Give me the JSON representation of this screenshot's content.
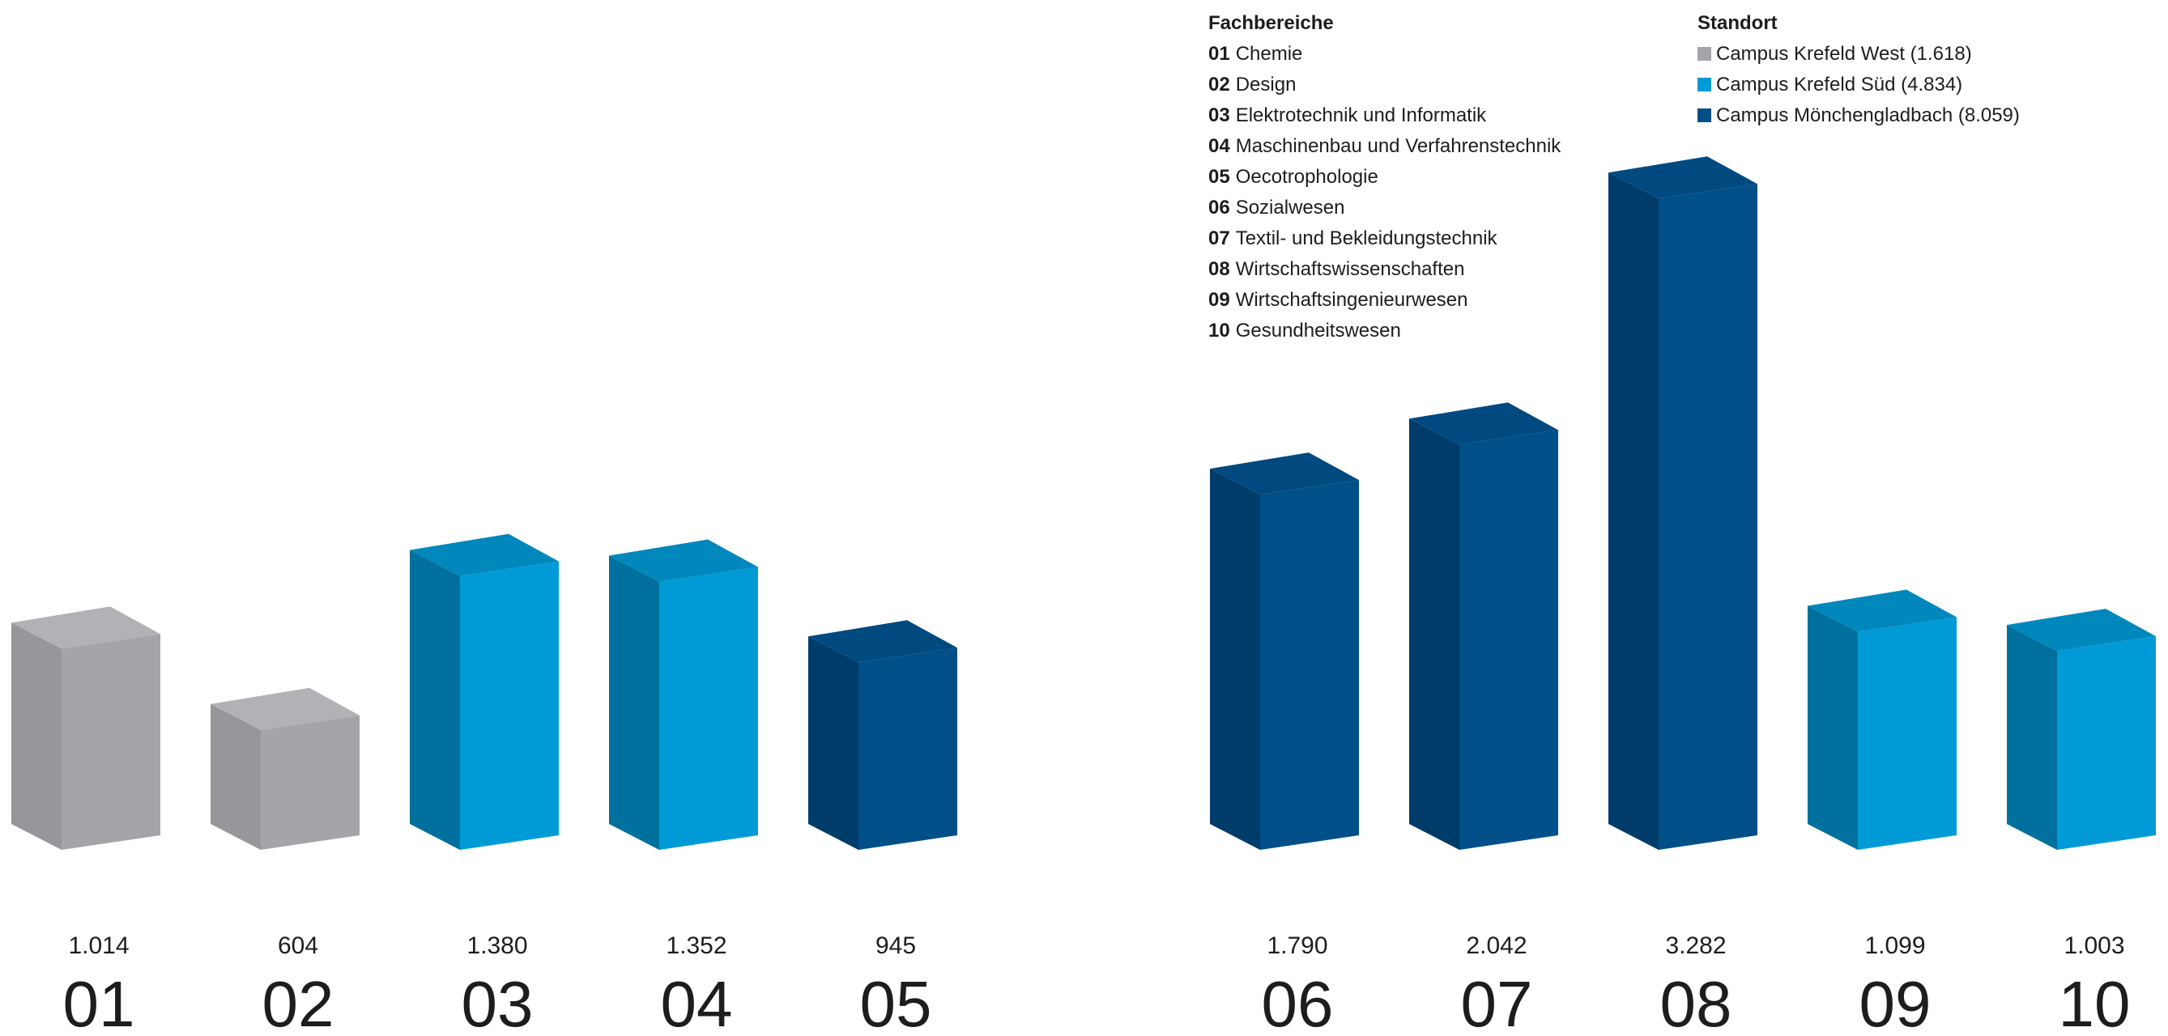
{
  "chart_data": {
    "type": "bar",
    "categories": [
      "01",
      "02",
      "03",
      "04",
      "05",
      "06",
      "07",
      "08",
      "09",
      "10"
    ],
    "values": [
      1014,
      604,
      1380,
      1352,
      945,
      1790,
      2042,
      3282,
      1099,
      1003
    ],
    "value_labels": [
      "1.014",
      "604",
      "1.380",
      "1.352",
      "945",
      "1.790",
      "2.042",
      "3.282",
      "1.099",
      "1.003"
    ],
    "campus": [
      "west",
      "west",
      "sued",
      "sued",
      "mg",
      "mg",
      "mg",
      "mg",
      "sued",
      "sued"
    ],
    "xlabel": "",
    "ylabel": "",
    "ylim": [
      0,
      3600
    ],
    "grid": false
  },
  "legend_fachbereiche": {
    "title": "Fachbereiche",
    "items": [
      {
        "code": "01",
        "label": "Chemie"
      },
      {
        "code": "02",
        "label": "Design"
      },
      {
        "code": "03",
        "label": "Elektrotechnik und Informatik"
      },
      {
        "code": "04",
        "label": "Maschinenbau und Verfahrenstechnik"
      },
      {
        "code": "05",
        "label": "Oecotrophologie"
      },
      {
        "code": "06",
        "label": "Sozialwesen"
      },
      {
        "code": "07",
        "label": "Textil- und Bekleidungstechnik"
      },
      {
        "code": "08",
        "label": "Wirtschaftswissenschaften"
      },
      {
        "code": "09",
        "label": "Wirtschaftsingenieurwesen"
      },
      {
        "code": "10",
        "label": "Gesundheitswesen"
      }
    ]
  },
  "legend_standort": {
    "title": "Standort",
    "items": [
      {
        "key": "west",
        "label": "Campus Krefeld West (1.618)",
        "color": "#a4a5a8"
      },
      {
        "key": "sued",
        "label": "Campus Krefeld Süd (4.834)",
        "color": "#009bd6"
      },
      {
        "key": "mg",
        "label": "Campus Mönchengladbach (8.059)",
        "color": "#004f88"
      }
    ]
  },
  "colors": {
    "west": {
      "front": "#a4a5a8",
      "side": "#96979a",
      "top": "#b1b2b5"
    },
    "sued": {
      "front": "#009bd6",
      "side": "#00719e",
      "top": "#0088bd"
    },
    "mg": {
      "front": "#004f88",
      "side": "#003c6a",
      "top": "#004a80"
    }
  }
}
